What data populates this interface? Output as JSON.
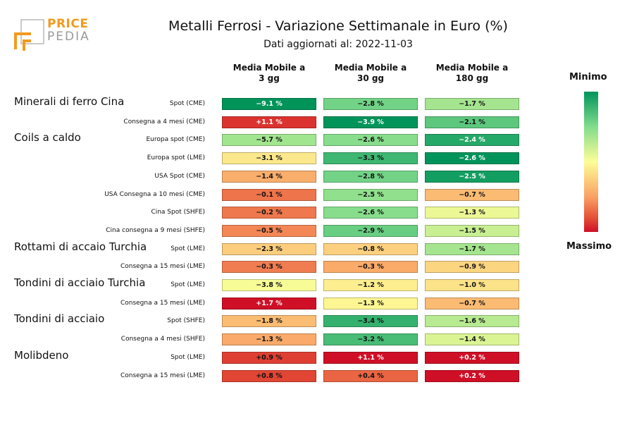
{
  "logo": {
    "line1": "PRICE",
    "line2": "PEDIA"
  },
  "header": {
    "title": "Metalli Ferrosi - Variazione Settimanale in Euro (%)",
    "subtitle": "Dati aggiornati al: 2022-11-03"
  },
  "legend": {
    "min_label": "Minimo",
    "max_label": "Massimo"
  },
  "colors": {
    "min": "#00945a",
    "mid": "#fdfd97",
    "max": "#cf0f26"
  },
  "chart_data": {
    "type": "table",
    "columns": [
      {
        "line1": "Media Mobile a",
        "line2": "3 gg"
      },
      {
        "line1": "Media Mobile a",
        "line2": "30 gg"
      },
      {
        "line1": "Media Mobile a",
        "line2": "180 gg"
      }
    ],
    "groups": [
      {
        "name": "Minerali di ferro Cina",
        "rows": [
          {
            "label": "Spot (CME)",
            "values": [
              "−9.1 %",
              "−2.8 %",
              "−1.7 %"
            ]
          },
          {
            "label": "Consegna a 4 mesi (CME)",
            "values": [
              "+1.1 %",
              "−3.9 %",
              "−2.1 %"
            ]
          }
        ]
      },
      {
        "name": "Coils a caldo",
        "rows": [
          {
            "label": "Europa spot (CME)",
            "values": [
              "−5.7 %",
              "−2.6 %",
              "−2.4 %"
            ]
          },
          {
            "label": "Europa spot (LME)",
            "values": [
              "−3.1 %",
              "−3.3 %",
              "−2.6 %"
            ]
          },
          {
            "label": "USA Spot (CME)",
            "values": [
              "−1.4 %",
              "−2.8 %",
              "−2.5 %"
            ]
          },
          {
            "label": "USA Consegna a 10 mesi (CME)",
            "values": [
              "−0.1 %",
              "−2.5 %",
              "−0.7 %"
            ]
          },
          {
            "label": "Cina Spot (SHFE)",
            "values": [
              "−0.2 %",
              "−2.6 %",
              "−1.3 %"
            ]
          },
          {
            "label": "Cina consegna a 9 mesi (SHFE)",
            "values": [
              "−0.5 %",
              "−2.9 %",
              "−1.5 %"
            ]
          }
        ]
      },
      {
        "name": "Rottami di accaio Turchia",
        "rows": [
          {
            "label": "Spot (LME)",
            "values": [
              "−2.3 %",
              "−0.8 %",
              "−1.7 %"
            ]
          },
          {
            "label": "Consegna a 15 mesi (LME)",
            "values": [
              "−0.3 %",
              "−0.3 %",
              "−0.9 %"
            ]
          }
        ]
      },
      {
        "name": "Tondini di acciaio Turchia",
        "rows": [
          {
            "label": "Spot (LME)",
            "values": [
              "−3.8 %",
              "−1.2 %",
              "−1.0 %"
            ]
          },
          {
            "label": "Consegna a 15 mesi (LME)",
            "values": [
              "+1.7 %",
              "−1.3 %",
              "−0.7 %"
            ]
          }
        ]
      },
      {
        "name": "Tondini di acciaio",
        "rows": [
          {
            "label": "Spot (SHFE)",
            "values": [
              "−1.8 %",
              "−3.4 %",
              "−1.6 %"
            ]
          },
          {
            "label": "Consegna a 4 mesi (SHFE)",
            "values": [
              "−1.3 %",
              "−3.2 %",
              "−1.4 %"
            ]
          }
        ]
      },
      {
        "name": "Molibdeno",
        "rows": [
          {
            "label": "Spot (LME)",
            "values": [
              "+0.9 %",
              "+1.1 %",
              "+0.2 %"
            ]
          },
          {
            "label": "Consegna a 15 mesi (LME)",
            "values": [
              "+0.8 %",
              "+0.4 %",
              "+0.2 %"
            ]
          }
        ]
      }
    ]
  }
}
